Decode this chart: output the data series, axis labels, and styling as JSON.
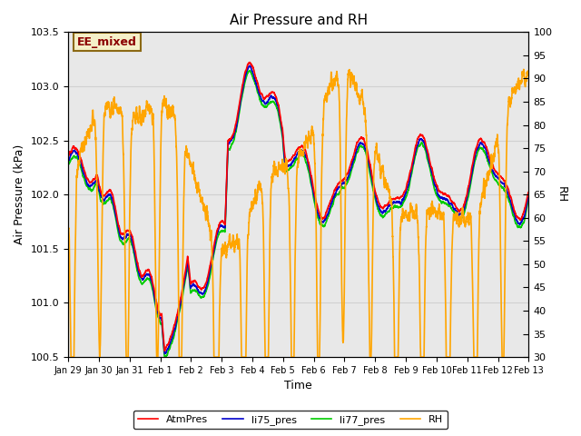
{
  "title": "Air Pressure and RH",
  "xlabel": "Time",
  "ylabel_left": "Air Pressure (kPa)",
  "ylabel_right": "RH",
  "ylim_left": [
    100.5,
    103.5
  ],
  "ylim_right": [
    30,
    100
  ],
  "annotation_text": "EE_mixed",
  "annotation_color": "#8B0000",
  "annotation_bg": "#F5F0C8",
  "annotation_border": "#8B6914",
  "grid_color": "#d0d0d0",
  "bg_color": "#e8e8e8",
  "line_colors": {
    "AtmPres": "#FF0000",
    "li75_pres": "#0000CC",
    "li77_pres": "#00CC00",
    "RH": "#FFA500"
  },
  "line_widths": {
    "AtmPres": 1.2,
    "li75_pres": 1.2,
    "li77_pres": 1.2,
    "RH": 1.2
  },
  "x_tick_labels": [
    "Jan 29",
    "Jan 30",
    "Jan 31",
    "Feb 1",
    "Feb 2",
    "Feb 3",
    "Feb 4",
    "Feb 5",
    "Feb 6",
    "Feb 7",
    "Feb 8",
    "Feb 9",
    "Feb 10",
    "Feb 11",
    "Feb 12",
    "Feb 13"
  ],
  "figsize": [
    6.4,
    4.8
  ],
  "dpi": 100
}
